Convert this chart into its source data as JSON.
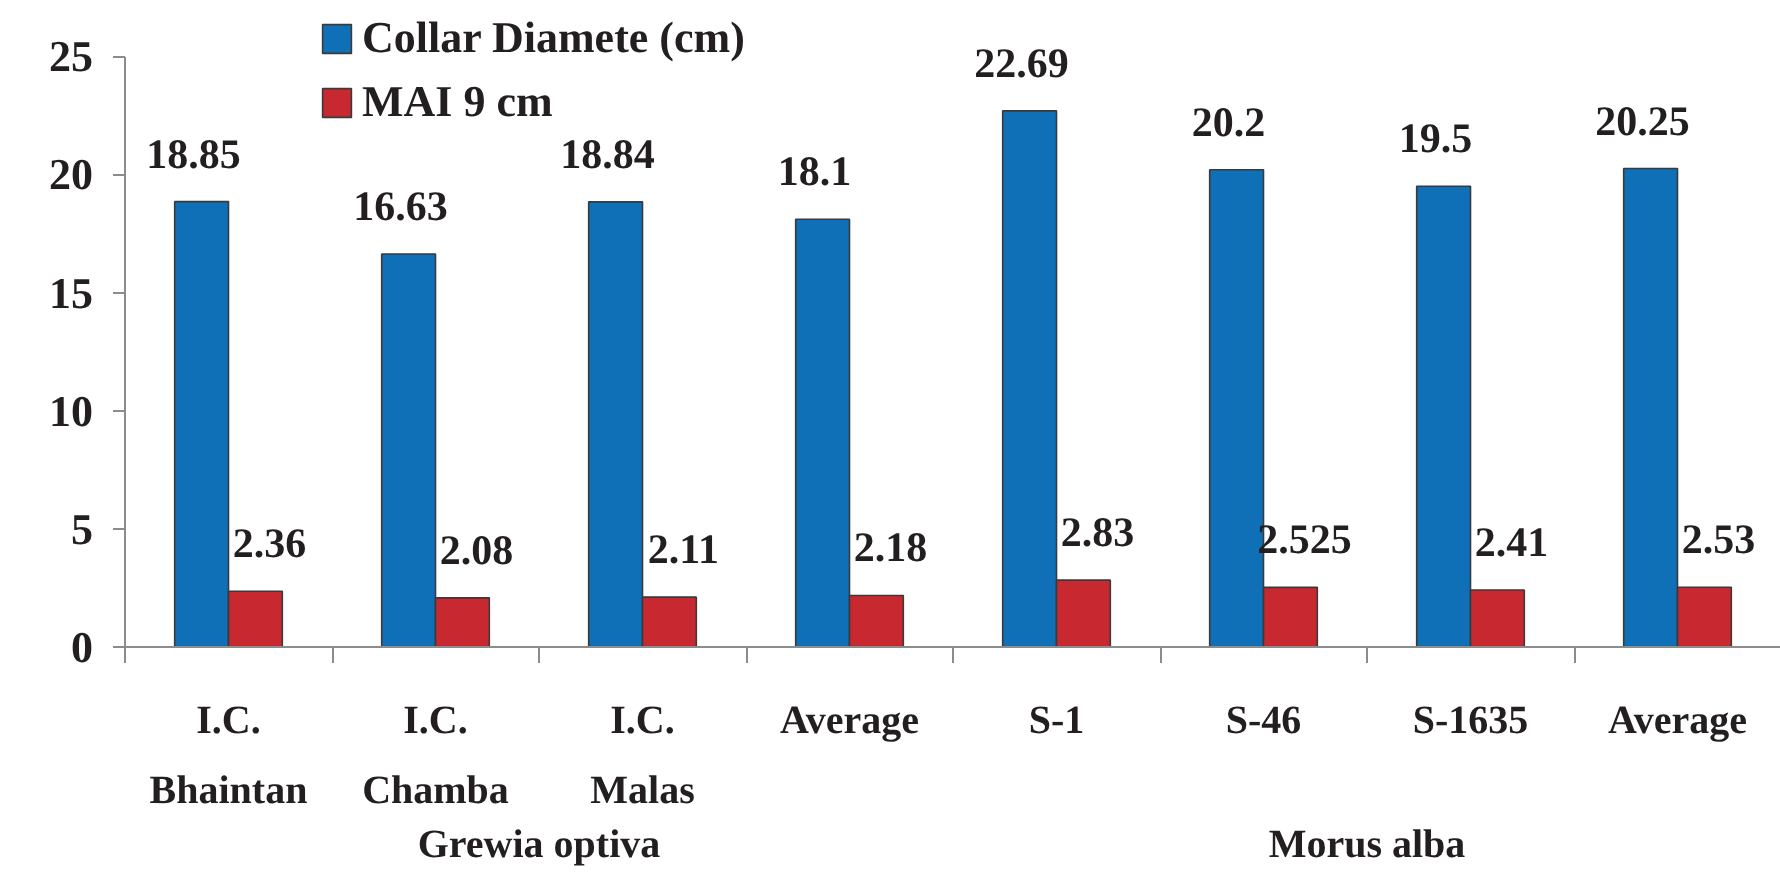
{
  "chart_data": {
    "type": "bar",
    "categories": [
      "I.C. Bhaintan",
      "I.C. Chamba",
      "I.C. Malas",
      "Average",
      "S-1",
      "S-46",
      "S-1635",
      "Average"
    ],
    "series": [
      {
        "name": "Collar Diamete (cm)",
        "color": "#0f70b7",
        "values": [
          18.85,
          16.63,
          18.84,
          18.1,
          22.69,
          20.2,
          19.5,
          20.25
        ]
      },
      {
        "name": "MAI 9 cm",
        "color": "#c8282f",
        "values": [
          2.36,
          2.08,
          2.11,
          2.18,
          2.83,
          2.525,
          2.41,
          2.53
        ]
      }
    ],
    "ylim": [
      0,
      25
    ],
    "yticks": [
      0,
      5,
      10,
      15,
      20,
      25
    ],
    "data_labels": true,
    "legend": "top left",
    "grid": false,
    "annotations": [
      "Grewia optiva",
      "Morus alba"
    ]
  }
}
